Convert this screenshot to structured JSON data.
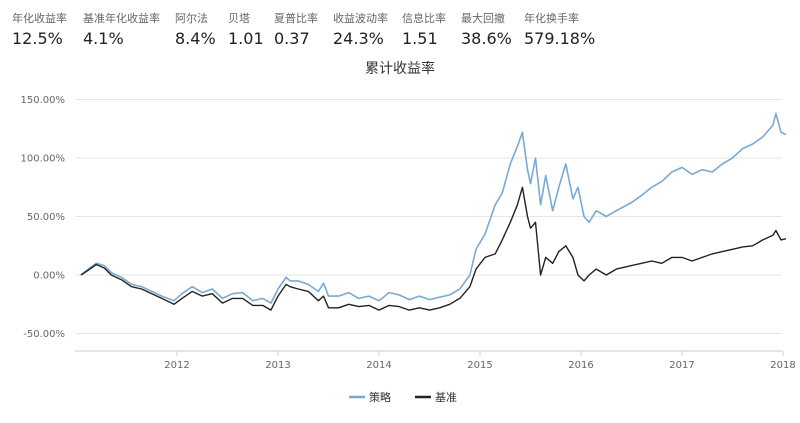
{
  "metrics": [
    {
      "label": "年化收益率",
      "value": "12.5%"
    },
    {
      "label": "基准年化收益率",
      "value": "4.1%"
    },
    {
      "label": "阿尔法",
      "value": "8.4%"
    },
    {
      "label": "贝塔",
      "value": "1.01"
    },
    {
      "label": "夏普比率",
      "value": "0.37"
    },
    {
      "label": "收益波动率",
      "value": "24.3%"
    },
    {
      "label": "信息比率",
      "value": "1.51"
    },
    {
      "label": "最大回撤",
      "value": "38.6%"
    },
    {
      "label": "年化换手率",
      "value": "579.18%"
    }
  ],
  "chart_data": {
    "type": "line",
    "title": "累计收益率",
    "xlabel": "",
    "ylabel": "",
    "xlim": [
      2011.0,
      2018.08
    ],
    "ylim": [
      -60,
      155
    ],
    "y_ticks": [
      -50,
      0,
      50,
      100,
      150
    ],
    "y_tick_labels": [
      "-50.00%",
      "0.00%",
      "50.00%",
      "100.00%",
      "150.00%"
    ],
    "x_ticks": [
      2012,
      2013,
      2014,
      2015,
      2016,
      2017,
      2018
    ],
    "x_tick_labels": [
      "2012",
      "2013",
      "2014",
      "2015",
      "2016",
      "2017",
      "2018"
    ],
    "grid": "horizontal",
    "legend_position": "bottom-center",
    "series": [
      {
        "name": "策略",
        "color": "#7aa9d2",
        "x": [
          2011.05,
          2011.12,
          2011.2,
          2011.28,
          2011.35,
          2011.45,
          2011.55,
          2011.65,
          2011.75,
          2011.85,
          2011.97,
          2012.05,
          2012.15,
          2012.25,
          2012.35,
          2012.45,
          2012.55,
          2012.65,
          2012.75,
          2012.85,
          2012.93,
          2013.0,
          2013.08,
          2013.12,
          2013.2,
          2013.3,
          2013.4,
          2013.45,
          2013.5,
          2013.6,
          2013.7,
          2013.8,
          2013.9,
          2014.0,
          2014.1,
          2014.2,
          2014.3,
          2014.4,
          2014.5,
          2014.6,
          2014.7,
          2014.8,
          2014.9,
          2014.96,
          2015.05,
          2015.15,
          2015.22,
          2015.3,
          2015.37,
          2015.42,
          2015.47,
          2015.5,
          2015.55,
          2015.6,
          2015.65,
          2015.72,
          2015.78,
          2015.85,
          2015.92,
          2015.97,
          2016.03,
          2016.08,
          2016.15,
          2016.25,
          2016.35,
          2016.5,
          2016.6,
          2016.7,
          2016.8,
          2016.9,
          2017.0,
          2017.1,
          2017.2,
          2017.3,
          2017.4,
          2017.5,
          2017.6,
          2017.7,
          2017.8,
          2017.9,
          2017.93,
          2017.98,
          2018.03
        ],
        "y": [
          0,
          5,
          10,
          8,
          2,
          -2,
          -8,
          -10,
          -14,
          -18,
          -22,
          -16,
          -10,
          -15,
          -12,
          -20,
          -16,
          -15,
          -22,
          -20,
          -24,
          -12,
          -2,
          -5,
          -5,
          -8,
          -14,
          -7,
          -18,
          -18,
          -15,
          -20,
          -18,
          -22,
          -15,
          -17,
          -21,
          -18,
          -21,
          -19,
          -17,
          -12,
          0,
          22,
          35,
          60,
          70,
          95,
          110,
          122,
          90,
          78,
          100,
          60,
          85,
          55,
          75,
          95,
          65,
          75,
          50,
          45,
          55,
          50,
          55,
          62,
          68,
          75,
          80,
          88,
          92,
          86,
          90,
          88,
          95,
          100,
          108,
          112,
          118,
          128,
          138,
          122,
          120
        ]
      },
      {
        "name": "基准",
        "color": "#222222",
        "x": [
          2011.05,
          2011.12,
          2011.2,
          2011.28,
          2011.35,
          2011.45,
          2011.55,
          2011.65,
          2011.75,
          2011.85,
          2011.97,
          2012.05,
          2012.15,
          2012.25,
          2012.35,
          2012.45,
          2012.55,
          2012.65,
          2012.75,
          2012.85,
          2012.93,
          2013.0,
          2013.08,
          2013.12,
          2013.2,
          2013.3,
          2013.4,
          2013.45,
          2013.5,
          2013.6,
          2013.7,
          2013.8,
          2013.9,
          2014.0,
          2014.1,
          2014.2,
          2014.3,
          2014.4,
          2014.5,
          2014.6,
          2014.7,
          2014.8,
          2014.9,
          2014.96,
          2015.05,
          2015.15,
          2015.22,
          2015.3,
          2015.37,
          2015.42,
          2015.47,
          2015.5,
          2015.55,
          2015.6,
          2015.65,
          2015.72,
          2015.78,
          2015.85,
          2015.92,
          2015.97,
          2016.03,
          2016.08,
          2016.15,
          2016.25,
          2016.35,
          2016.5,
          2016.6,
          2016.7,
          2016.8,
          2016.9,
          2017.0,
          2017.1,
          2017.2,
          2017.3,
          2017.4,
          2017.5,
          2017.6,
          2017.7,
          2017.8,
          2017.9,
          2017.93,
          2017.98,
          2018.03
        ],
        "y": [
          0,
          4,
          9,
          6,
          0,
          -4,
          -10,
          -12,
          -16,
          -20,
          -25,
          -20,
          -14,
          -18,
          -16,
          -24,
          -20,
          -20,
          -26,
          -26,
          -30,
          -18,
          -8,
          -10,
          -12,
          -14,
          -22,
          -18,
          -28,
          -28,
          -25,
          -27,
          -26,
          -30,
          -26,
          -27,
          -30,
          -28,
          -30,
          -28,
          -25,
          -20,
          -10,
          5,
          15,
          18,
          30,
          45,
          60,
          75,
          50,
          40,
          45,
          0,
          15,
          10,
          20,
          25,
          15,
          0,
          -5,
          0,
          5,
          0,
          5,
          8,
          10,
          12,
          10,
          15,
          15,
          12,
          15,
          18,
          20,
          22,
          24,
          25,
          30,
          34,
          38,
          30,
          31
        ]
      }
    ]
  }
}
